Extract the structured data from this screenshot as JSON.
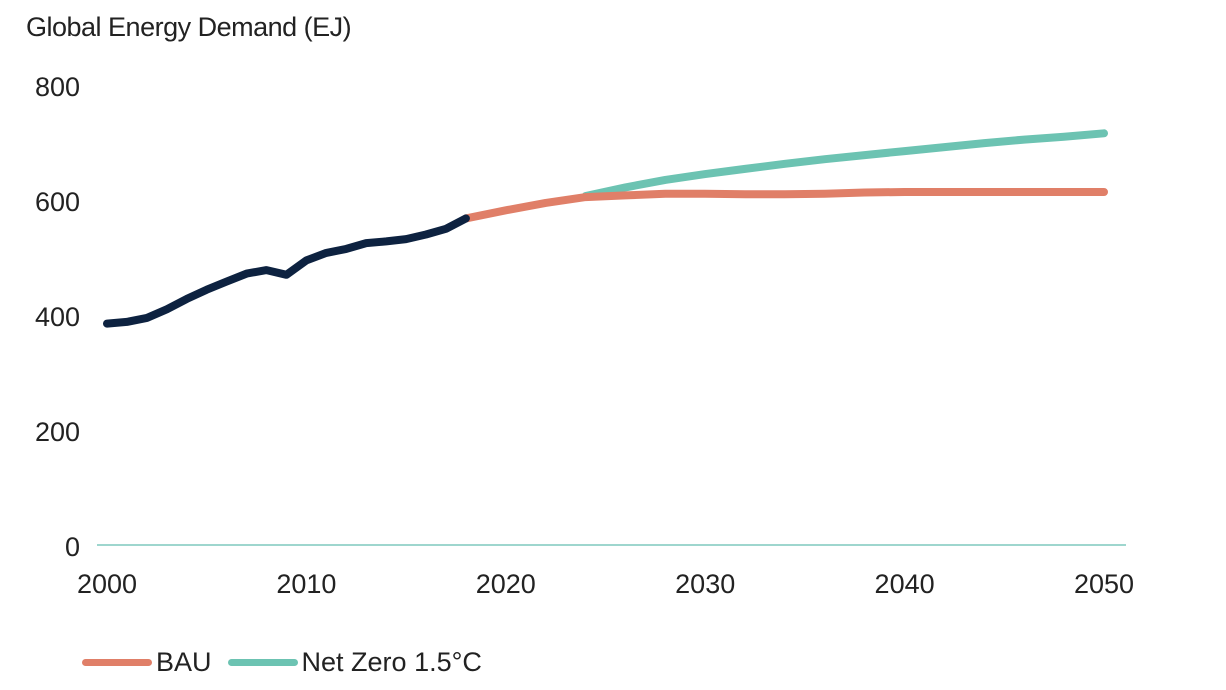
{
  "chart_data": {
    "type": "line",
    "title": "Global Energy Demand (EJ)",
    "xlabel": "",
    "ylabel": "",
    "xlim": [
      2000,
      2050
    ],
    "ylim": [
      0,
      800
    ],
    "x_ticks": [
      2000,
      2010,
      2020,
      2030,
      2040,
      2050
    ],
    "y_ticks": [
      0,
      200,
      400,
      600,
      800
    ],
    "grid": false,
    "legend_position": "bottom-left",
    "series": [
      {
        "name": "",
        "color": "#0d2240",
        "legend": false,
        "x": [
          2000,
          2001,
          2002,
          2003,
          2004,
          2005,
          2006,
          2007,
          2008,
          2009,
          2010,
          2011,
          2012,
          2013,
          2014,
          2015,
          2016,
          2017,
          2018
        ],
        "y": [
          385,
          388,
          395,
          410,
          428,
          444,
          458,
          472,
          478,
          470,
          495,
          508,
          515,
          525,
          528,
          532,
          540,
          550,
          568
        ]
      },
      {
        "name": "BAU",
        "color": "#e07f68",
        "legend": true,
        "x": [
          2018,
          2020,
          2022,
          2024,
          2026,
          2028,
          2030,
          2032,
          2034,
          2036,
          2038,
          2040,
          2042,
          2044,
          2046,
          2048,
          2050
        ],
        "y": [
          568,
          582,
          595,
          605,
          608,
          611,
          611,
          610,
          610,
          611,
          613,
          614,
          614,
          614,
          614,
          614,
          614
        ]
      },
      {
        "name": "Net Zero 1.5°C",
        "color": "#6cc3b2",
        "legend": true,
        "x": [
          2024,
          2026,
          2028,
          2030,
          2032,
          2034,
          2036,
          2038,
          2040,
          2042,
          2044,
          2046,
          2048,
          2050
        ],
        "y": [
          607,
          622,
          635,
          645,
          654,
          663,
          671,
          678,
          685,
          692,
          699,
          705,
          710,
          716
        ]
      }
    ]
  }
}
